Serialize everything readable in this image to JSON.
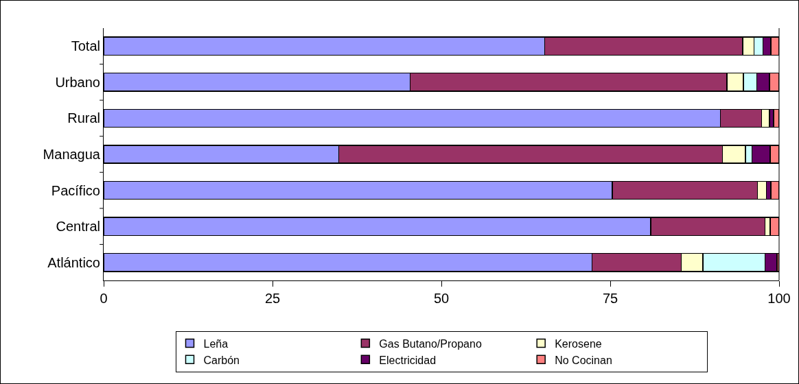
{
  "chart_data": {
    "type": "bar",
    "orientation": "horizontal",
    "stacked": true,
    "categories": [
      "Total",
      "Urbano",
      "Rural",
      "Managua",
      "Pacífico",
      "Central",
      "Atlántico"
    ],
    "series": [
      {
        "name": "Leña",
        "color": "#9999ff",
        "values": [
          65.3,
          45.4,
          91.3,
          34.8,
          75.3,
          81.0,
          72.3
        ]
      },
      {
        "name": "Gas Butano/Propano",
        "color": "#993366",
        "values": [
          29.3,
          46.9,
          6.1,
          56.8,
          21.5,
          16.9,
          13.2
        ]
      },
      {
        "name": "Kerosene",
        "color": "#ffffcc",
        "values": [
          1.7,
          2.4,
          1.2,
          3.4,
          1.3,
          0.8,
          3.2
        ]
      },
      {
        "name": "Carbón",
        "color": "#ccffff",
        "values": [
          1.3,
          2.0,
          null,
          1.0,
          null,
          null,
          9.2
        ]
      },
      {
        "name": "Electricidad",
        "color": "#660066",
        "values": [
          1.2,
          1.9,
          0.6,
          2.7,
          0.7,
          null,
          1.8
        ]
      },
      {
        "name": "No Cocinan",
        "color": "#ff8080",
        "values": [
          1.2,
          1.4,
          0.8,
          1.3,
          1.2,
          1.3,
          0.3
        ]
      }
    ],
    "xlim": [
      0,
      100
    ],
    "xticks": [
      0,
      25,
      50,
      75,
      100
    ],
    "grid": false,
    "legend": "bottom"
  }
}
